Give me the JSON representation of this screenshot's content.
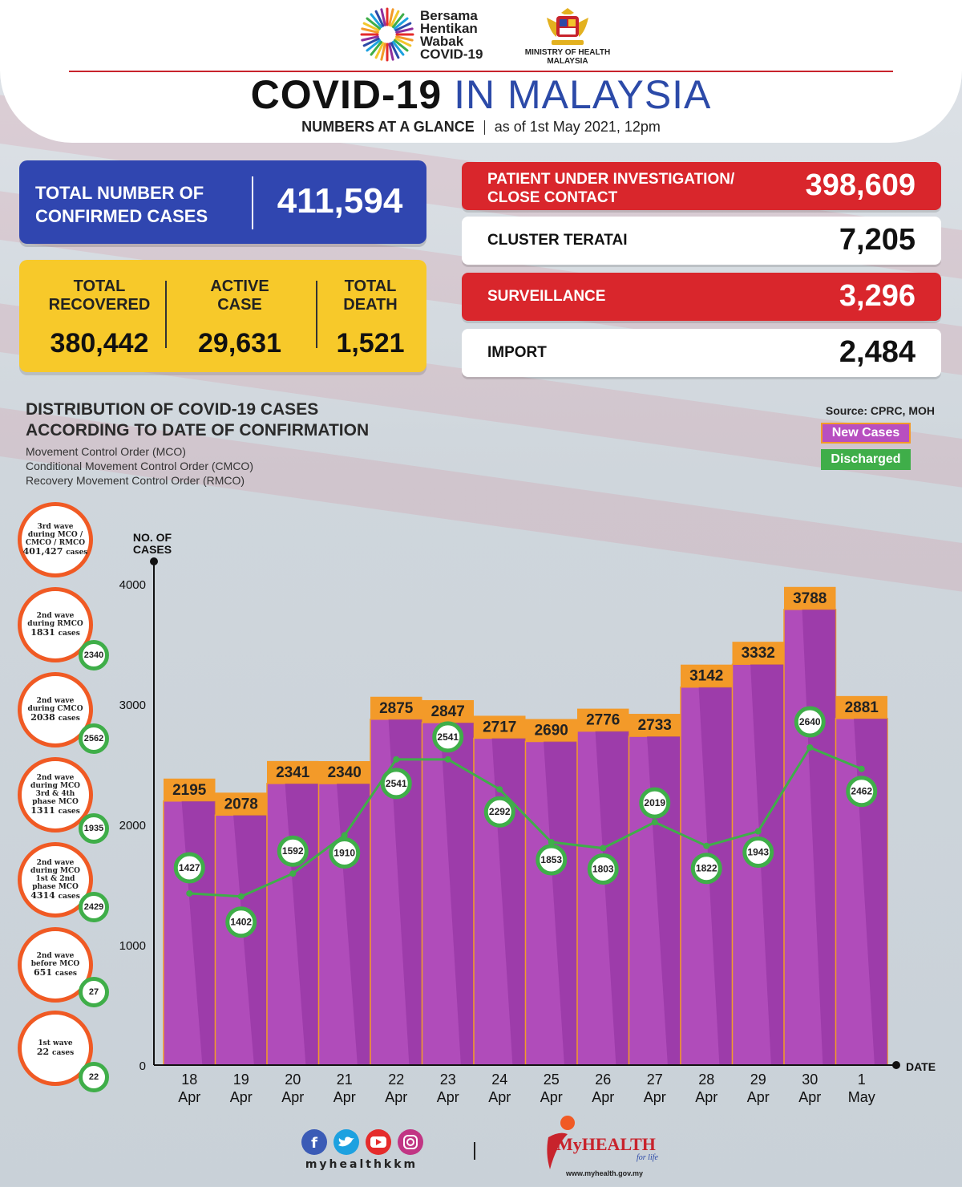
{
  "header": {
    "logo_lines": [
      "Bersama",
      "Hentikan",
      "Wabak",
      "COVID-19"
    ],
    "ministry_line1": "MINISTRY OF HEALTH",
    "ministry_line2": "MALAYSIA",
    "title_part1": "COVID-19",
    "title_part2": "IN MALAYSIA",
    "subtitle_left": "NUMBERS AT A GLANCE",
    "subtitle_right": "as of 1st May 2021, 12pm"
  },
  "confirmed": {
    "label": "TOTAL NUMBER OF CONFIRMED CASES",
    "value": "411,594"
  },
  "summary": [
    {
      "label1": "TOTAL",
      "label2": "RECOVERED",
      "value": "380,442"
    },
    {
      "label1": "ACTIVE",
      "label2": "CASE",
      "value": "29,631"
    },
    {
      "label1": "TOTAL",
      "label2": "DEATH",
      "value": "1,521"
    }
  ],
  "stats": [
    {
      "label1": "PATIENT UNDER INVESTIGATION/",
      "label2": "CLOSE CONTACT",
      "value": "398,609",
      "style": "red"
    },
    {
      "label1": "CLUSTER TERATAI",
      "label2": "",
      "value": "7,205",
      "style": "white"
    },
    {
      "label1": "SURVEILLANCE",
      "label2": "",
      "value": "3,296",
      "style": "red"
    },
    {
      "label1": "IMPORT",
      "label2": "",
      "value": "2,484",
      "style": "white"
    }
  ],
  "distribution": {
    "title_line1": "DISTRIBUTION OF COVID-19 CASES",
    "title_line2": "ACCORDING TO DATE OF CONFIRMATION",
    "notes": [
      "Movement Control Order (MCO)",
      "Conditional Movement Control Order (CMCO)",
      "Recovery Movement Control Order (RMCO)"
    ],
    "source": "Source: CPRC, MOH"
  },
  "waves": [
    {
      "label": "3rd wave during MCO / CMCO / RMCO",
      "count": "401,427",
      "unit": "cases",
      "discharged": ""
    },
    {
      "label": "2nd wave during RMCO",
      "count": "1831",
      "unit": "cases",
      "discharged": "2340"
    },
    {
      "label": "2nd wave during CMCO",
      "count": "2038",
      "unit": "cases",
      "discharged": "2562"
    },
    {
      "label": "2nd wave during MCO 3rd & 4th phase MCO",
      "count": "1311",
      "unit": "cases",
      "discharged": "1935"
    },
    {
      "label": "2nd wave during MCO 1st & 2nd phase MCO",
      "count": "4314",
      "unit": "cases",
      "discharged": "2429"
    },
    {
      "label": "2nd wave before MCO",
      "count": "651",
      "unit": "cases",
      "discharged": "27"
    },
    {
      "label": "1st wave",
      "count": "22",
      "unit": "cases",
      "discharged": "22"
    }
  ],
  "chart_data": {
    "type": "bar",
    "ylabel": "NO. OF CASES",
    "xlabel": "DATE",
    "ylim": [
      0,
      4000
    ],
    "yticks": [
      0,
      1000,
      2000,
      3000,
      4000
    ],
    "categories": [
      "18 Apr",
      "19 Apr",
      "20 Apr",
      "21 Apr",
      "22 Apr",
      "23 Apr",
      "24 Apr",
      "25 Apr",
      "26 Apr",
      "27 Apr",
      "28 Apr",
      "29 Apr",
      "30 Apr",
      "1 May"
    ],
    "series": [
      {
        "name": "New Cases",
        "type": "bar",
        "values": [
          2195,
          2078,
          2341,
          2340,
          2875,
          2847,
          2717,
          2690,
          2776,
          2733,
          3142,
          3332,
          3788,
          2881
        ]
      },
      {
        "name": "Discharged",
        "type": "line",
        "values": [
          1427,
          1402,
          1592,
          1910,
          2541,
          2541,
          2292,
          1853,
          1803,
          2019,
          1822,
          1943,
          2640,
          2462
        ]
      }
    ],
    "colors": {
      "bar": "#b04cba",
      "bar_dark": "#8e2f9c",
      "bar_label": "#f39a29",
      "line": "#3fae49",
      "axis": "#111111"
    }
  },
  "footer": {
    "handle": "myhealthkkm",
    "brand": "MyHEALTH",
    "tagline": "for life",
    "url": "www.myhealth.gov.my"
  }
}
